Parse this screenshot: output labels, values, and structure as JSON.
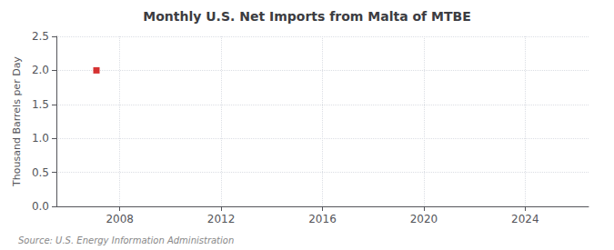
{
  "chart_data": {
    "type": "scatter",
    "title": "Monthly U.S. Net Imports from Malta of MTBE",
    "ylabel": "Thousand Barrels per Day",
    "source": "Source: U.S. Energy Information Administration",
    "x": [
      2007.08
    ],
    "values": [
      2.0
    ],
    "color": "#cc0000",
    "marker": "square",
    "xlim": [
      2005.5,
      2026.5
    ],
    "xticks": [
      2008,
      2012,
      2016,
      2020,
      2024
    ],
    "ylim": [
      0.0,
      2.5
    ],
    "yticks": [
      {
        "value": 0,
        "label": "0.0"
      },
      0.5,
      {
        "value": 1,
        "label": "1.0"
      },
      1.5,
      {
        "value": 2,
        "label": "2.0"
      },
      2.5
    ],
    "grid": true
  }
}
